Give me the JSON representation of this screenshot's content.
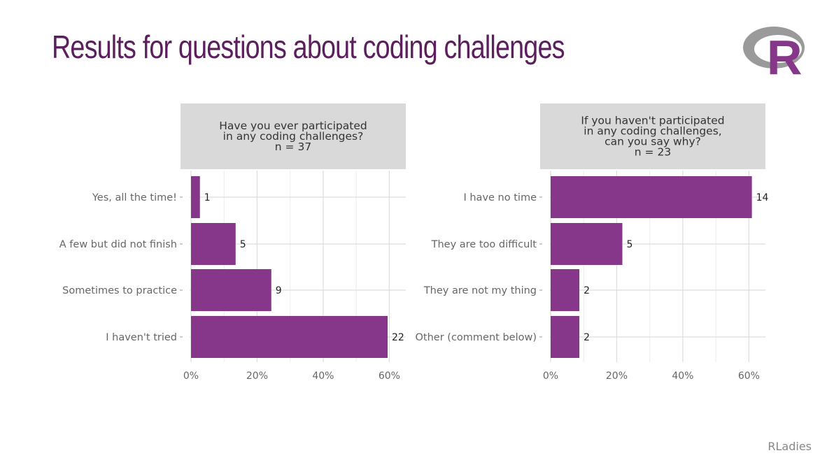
{
  "slide": {
    "title": "Results for questions about coding challenges",
    "footer": "RLadies",
    "logo_letter": "R",
    "logo_icon": "r-logo-icon",
    "accent_color": "#5b1f5e"
  },
  "chart_data": [
    {
      "type": "bar",
      "orientation": "horizontal",
      "title_lines": [
        "Have you ever participated",
        "in any coding challenges?",
        "n = 37"
      ],
      "categories": [
        "Yes, all the time!",
        "A few but did not finish",
        "Sometimes to practice",
        "I haven't tried"
      ],
      "values": [
        1,
        5,
        9,
        22
      ],
      "percent": [
        2.7,
        13.5,
        24.3,
        59.5
      ],
      "x_axis_format": "percent",
      "xlim": [
        0,
        65
      ],
      "x_ticks": [
        0,
        20,
        40,
        60
      ],
      "x_tick_labels": [
        "0%",
        "20%",
        "40%",
        "60%"
      ],
      "bar_color": "#863789",
      "strip_color": "#d9d9d9",
      "grid": true
    },
    {
      "type": "bar",
      "orientation": "horizontal",
      "title_lines": [
        "If you haven't participated",
        "in any coding challenges,",
        "can you say why?",
        "n = 23"
      ],
      "categories": [
        "I have no time",
        "They are too difficult",
        "They are not my thing",
        "Other (comment below)"
      ],
      "values": [
        14,
        5,
        2,
        2
      ],
      "percent": [
        60.9,
        21.7,
        8.7,
        8.7
      ],
      "x_axis_format": "percent",
      "xlim": [
        0,
        65
      ],
      "x_ticks": [
        0,
        20,
        40,
        60
      ],
      "x_tick_labels": [
        "0%",
        "20%",
        "40%",
        "60%"
      ],
      "bar_color": "#863789",
      "strip_color": "#d9d9d9",
      "grid": true
    }
  ]
}
